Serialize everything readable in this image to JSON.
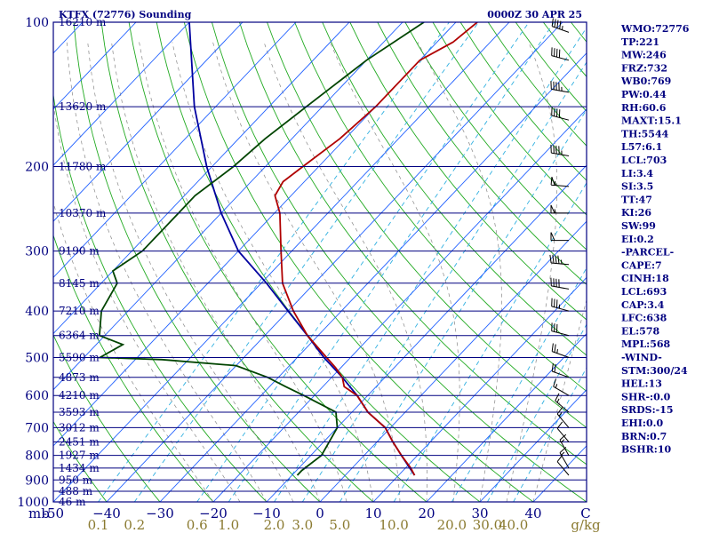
{
  "header": {
    "station": "KTFX (72776) Sounding",
    "time": "0000Z 30 APR 25"
  },
  "indices": [
    "WMO:72776",
    "TP:221",
    "MW:246",
    "FRZ:732",
    "WB0:769",
    "PW:0.44",
    "RH:60.6",
    "MAXT:15.1",
    "TH:5544",
    "L57:6.1",
    "LCL:703",
    "LI:3.4",
    "SI:3.5",
    "TT:47",
    "KI:26",
    "SW:99",
    "EI:0.2",
    "-PARCEL-",
    "CAPE:7",
    "CINH:18",
    "LCL:693",
    "CAP:3.4",
    "LFC:638",
    "EL:578",
    "MPL:568",
    "-WIND-",
    "STM:300/24",
    "HEL:13",
    "SHR-:0.0",
    "SRDS:-15",
    "EHI:0.0",
    "BRN:0.7",
    "BSHR:10"
  ],
  "colors": {
    "frame": "#000080",
    "temperature": "#b00000",
    "dewpoint": "#004400",
    "parcel": "#0000a0",
    "isotherm": "#2060ff",
    "dry_adiabat": "#22aa22",
    "mixing_ratio": "#30b0e0",
    "moist_adiabat": "#888888"
  },
  "chart_data": {
    "type": "line",
    "title": "KTFX (72776) Sounding",
    "subtitle": "0000Z 30 APR 25",
    "pressure_unit_label": "mb",
    "ylim_mb": [
      100,
      1000
    ],
    "xlim_c": [
      -50,
      50
    ],
    "pressure_ticks": [
      100,
      200,
      300,
      400,
      500,
      600,
      700,
      800,
      900,
      1000
    ],
    "temperature_ticks": [
      -50,
      -40,
      -30,
      -20,
      -10,
      0,
      10,
      20,
      30,
      40
    ],
    "temperature_tick_labels": [
      "-50",
      "−40",
      "−30",
      "−20",
      "−10",
      "0",
      "10",
      "20",
      "30",
      "40"
    ],
    "axis_end_label": "C",
    "mixing_ratio_labels": [
      {
        "text": "0.1",
        "g": 0.1
      },
      {
        "text": "0.2",
        "g": 0.2
      },
      {
        "text": "0.6",
        "g": 0.6
      },
      {
        "text": "1.0",
        "g": 1.0
      },
      {
        "text": "2.0",
        "g": 2.0
      },
      {
        "text": "3.0",
        "g": 3.0
      },
      {
        "text": "5.0",
        "g": 5.0
      },
      {
        "text": "10.0",
        "g": 10.0
      },
      {
        "text": "20.0",
        "g": 20.0
      },
      {
        "text": "30.0",
        "g": 30.0
      },
      {
        "text": "40.0",
        "g": 40.0
      }
    ],
    "mixing_ratio_unit": "g/kg",
    "height_labels": [
      {
        "p": 100,
        "text": "16210 m"
      },
      {
        "p": 150,
        "text": "13620 m"
      },
      {
        "p": 200,
        "text": "11780 m"
      },
      {
        "p": 250,
        "text": "10370 m"
      },
      {
        "p": 300,
        "text": "9190 m"
      },
      {
        "p": 350,
        "text": "8145 m"
      },
      {
        "p": 400,
        "text": "7210 m"
      },
      {
        "p": 450,
        "text": "6364 m"
      },
      {
        "p": 500,
        "text": "5590 m"
      },
      {
        "p": 550,
        "text": "4873 m"
      },
      {
        "p": 600,
        "text": "4210 m"
      },
      {
        "p": 650,
        "text": "3593 m"
      },
      {
        "p": 700,
        "text": "3012 m"
      },
      {
        "p": 750,
        "text": "2451 m"
      },
      {
        "p": 800,
        "text": "1927 m"
      },
      {
        "p": 850,
        "text": "1434 m"
      },
      {
        "p": 900,
        "text": "950 m"
      },
      {
        "p": 950,
        "text": "488 m"
      },
      {
        "p": 1000,
        "text": "46 m"
      }
    ],
    "series": [
      {
        "key": "temperature",
        "points": [
          [
            100,
            -56
          ],
          [
            110,
            -57
          ],
          [
            120,
            -60
          ],
          [
            150,
            -60
          ],
          [
            175,
            -61
          ],
          [
            200,
            -63
          ],
          [
            215,
            -64
          ],
          [
            230,
            -63
          ],
          [
            250,
            -59
          ],
          [
            300,
            -52
          ],
          [
            350,
            -46
          ],
          [
            400,
            -39
          ],
          [
            450,
            -32
          ],
          [
            500,
            -24.5
          ],
          [
            525,
            -21
          ],
          [
            550,
            -18
          ],
          [
            575,
            -16
          ],
          [
            600,
            -12
          ],
          [
            650,
            -7
          ],
          [
            700,
            -1
          ],
          [
            750,
            3
          ],
          [
            800,
            7
          ],
          [
            850,
            11
          ],
          [
            880,
            13
          ]
        ]
      },
      {
        "key": "dewpoint",
        "points": [
          [
            100,
            -66
          ],
          [
            120,
            -70
          ],
          [
            150,
            -73
          ],
          [
            175,
            -75
          ],
          [
            200,
            -76
          ],
          [
            230,
            -78
          ],
          [
            250,
            -78
          ],
          [
            300,
            -78
          ],
          [
            330,
            -80
          ],
          [
            350,
            -77
          ],
          [
            400,
            -75
          ],
          [
            450,
            -71
          ],
          [
            470,
            -65
          ],
          [
            500,
            -67
          ],
          [
            505,
            -55
          ],
          [
            520,
            -40
          ],
          [
            550,
            -32
          ],
          [
            575,
            -27
          ],
          [
            600,
            -22
          ],
          [
            650,
            -13
          ],
          [
            700,
            -10
          ],
          [
            800,
            -8
          ],
          [
            860,
            -9
          ],
          [
            880,
            -9
          ]
        ]
      },
      {
        "key": "parcel",
        "points": [
          [
            880,
            13
          ],
          [
            800,
            7
          ],
          [
            750,
            3
          ],
          [
            700,
            -1
          ],
          [
            650,
            -7
          ],
          [
            600,
            -12
          ],
          [
            550,
            -18
          ],
          [
            500,
            -25
          ],
          [
            450,
            -32
          ],
          [
            400,
            -40
          ],
          [
            350,
            -49
          ],
          [
            300,
            -60
          ],
          [
            250,
            -70
          ],
          [
            200,
            -81
          ],
          [
            150,
            -94
          ],
          [
            100,
            -110
          ]
        ]
      }
    ],
    "wind_barbs": [
      {
        "p": 105,
        "dir": 290,
        "kt": 45
      },
      {
        "p": 120,
        "dir": 285,
        "kt": 40
      },
      {
        "p": 140,
        "dir": 280,
        "kt": 45
      },
      {
        "p": 160,
        "dir": 285,
        "kt": 40
      },
      {
        "p": 190,
        "dir": 280,
        "kt": 45
      },
      {
        "p": 220,
        "dir": 275,
        "kt": 55
      },
      {
        "p": 250,
        "dir": 270,
        "kt": 55
      },
      {
        "p": 285,
        "dir": 270,
        "kt": 50
      },
      {
        "p": 320,
        "dir": 275,
        "kt": 45
      },
      {
        "p": 360,
        "dir": 280,
        "kt": 40
      },
      {
        "p": 400,
        "dir": 285,
        "kt": 35
      },
      {
        "p": 450,
        "dir": 285,
        "kt": 30
      },
      {
        "p": 500,
        "dir": 290,
        "kt": 25
      },
      {
        "p": 550,
        "dir": 290,
        "kt": 20
      },
      {
        "p": 600,
        "dir": 300,
        "kt": 15
      },
      {
        "p": 650,
        "dir": 310,
        "kt": 15
      },
      {
        "p": 700,
        "dir": 320,
        "kt": 15
      },
      {
        "p": 750,
        "dir": 320,
        "kt": 10
      },
      {
        "p": 800,
        "dir": 330,
        "kt": 15
      },
      {
        "p": 850,
        "dir": 330,
        "kt": 15
      },
      {
        "p": 880,
        "dir": 320,
        "kt": 10
      }
    ]
  }
}
